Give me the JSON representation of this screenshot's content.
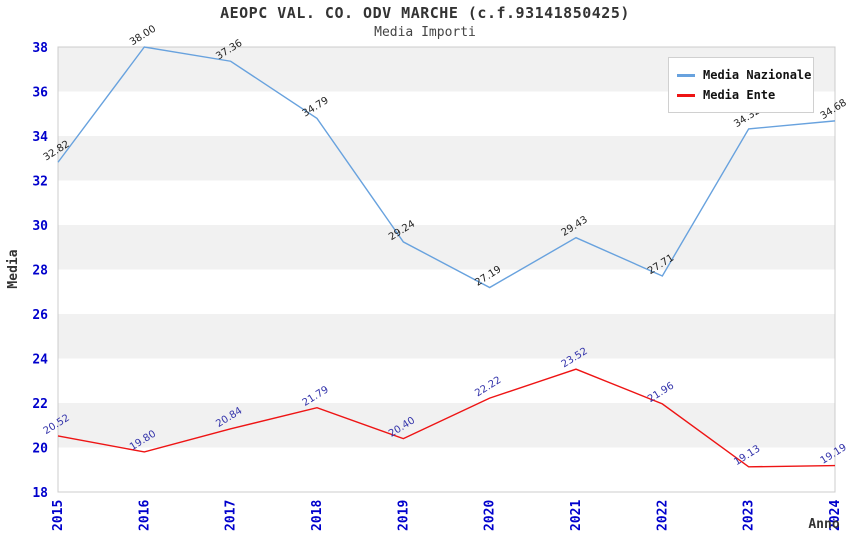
{
  "header": {
    "title": "AEOPC VAL. CO. ODV MARCHE (c.f.93141850425)",
    "subtitle": "Media Importi"
  },
  "chart_data": {
    "type": "line",
    "x": [
      "2015",
      "2016",
      "2017",
      "2018",
      "2019",
      "2020",
      "2021",
      "2022",
      "2023",
      "2024"
    ],
    "xlabel": "Anno",
    "ylabel": "Media",
    "ylim": [
      18,
      38
    ],
    "ytick_step": 2,
    "grid": "alternating-horizontal-bands",
    "legend_position": "top-right",
    "band_colors": [
      "#ffffff",
      "#f1f1f1"
    ],
    "plot_border_color": "#cccccc",
    "axis_tick_color": "#0000cc",
    "series": [
      {
        "name": "Media Nazionale",
        "color": "#68a2de",
        "label_color": "#222222",
        "values": [
          "32.82",
          "38.00",
          "37.36",
          "34.79",
          "29.24",
          "27.19",
          "29.43",
          "27.71",
          "34.32",
          "34.68"
        ]
      },
      {
        "name": "Media Ente",
        "color": "#ee1414",
        "label_color": "#3333aa",
        "values": [
          "20.52",
          "19.80",
          "20.84",
          "21.79",
          "20.40",
          "22.22",
          "23.52",
          "21.96",
          "19.13",
          "19.19"
        ]
      }
    ]
  }
}
